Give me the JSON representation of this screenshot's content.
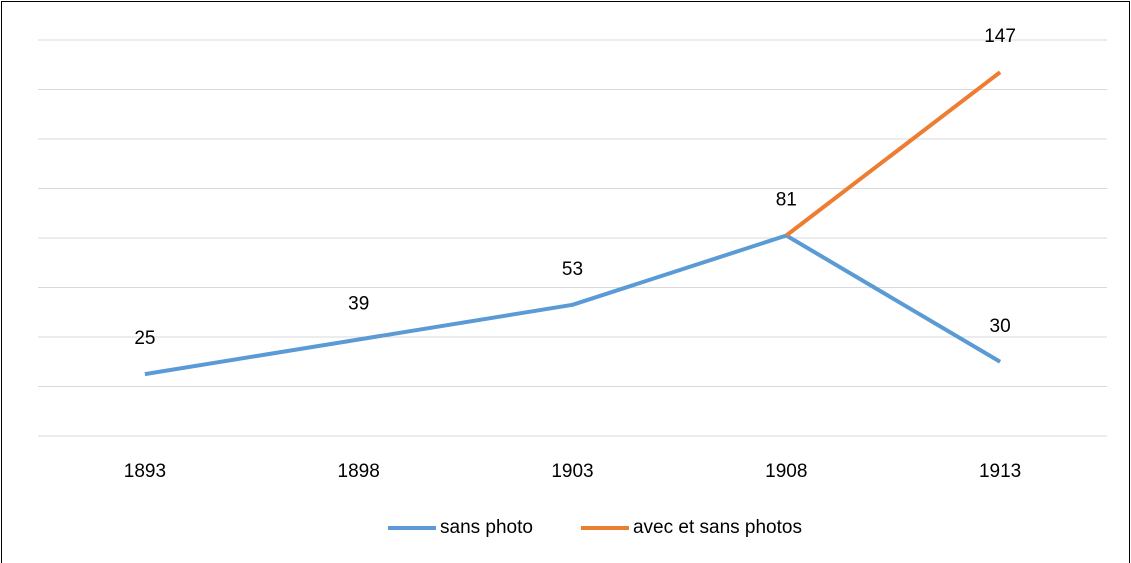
{
  "chart_data": {
    "type": "line",
    "categories": [
      "1893",
      "1898",
      "1903",
      "1908",
      "1913"
    ],
    "series": [
      {
        "name": "sans photo",
        "color": "#5b9bd5",
        "values": [
          25,
          39,
          53,
          81,
          30
        ]
      },
      {
        "name": "avec et sans photos",
        "color": "#ed7d31",
        "values": [
          null,
          null,
          null,
          81,
          147
        ]
      }
    ],
    "ylim": [
      0,
      160
    ],
    "yticks": [
      0,
      20,
      40,
      60,
      80,
      100,
      120,
      140,
      160
    ],
    "grid": true,
    "legend": "bottom"
  }
}
